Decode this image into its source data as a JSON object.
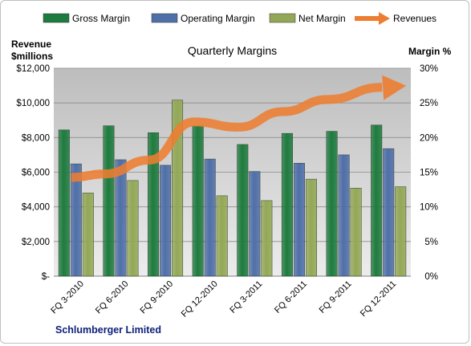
{
  "chart_data": {
    "type": "bar",
    "title": "Quarterly Margins",
    "company": "Schlumberger Limited",
    "left_axis_label": [
      "Revenue",
      "$millions"
    ],
    "right_axis_label": "Margin %",
    "left_ticks": [
      "$-",
      "$2,000",
      "$4,000",
      "$6,000",
      "$8,000",
      "$10,000",
      "$12,000"
    ],
    "right_ticks": [
      "0%",
      "5%",
      "10%",
      "15%",
      "20%",
      "25%",
      "30%"
    ],
    "ylim_left": [
      0,
      12000
    ],
    "ylim_right": [
      0,
      30
    ],
    "grid": true,
    "legend_position": "top",
    "categories": [
      "FQ 3-2010",
      "FQ 6-2010",
      "FQ 9-2010",
      "FQ 12-2010",
      "FQ 3-2011",
      "FQ 6-2011",
      "FQ 9-2011",
      "FQ 12-2011"
    ],
    "series": [
      {
        "name": "Gross Margin",
        "axis": "right",
        "color": "#1e7b3e",
        "values": [
          21.1,
          21.7,
          20.7,
          21.7,
          19.0,
          20.6,
          20.9,
          21.8
        ]
      },
      {
        "name": "Operating Margin",
        "axis": "right",
        "color": "#4f6fa8",
        "values": [
          16.2,
          16.8,
          16.0,
          16.9,
          15.1,
          16.3,
          17.5,
          18.4
        ]
      },
      {
        "name": "Net Margin",
        "axis": "right",
        "color": "#93a856",
        "values": [
          12.0,
          13.8,
          25.4,
          11.6,
          10.9,
          14.0,
          12.7,
          12.9
        ]
      },
      {
        "name": "Revenues",
        "axis": "left",
        "color": "#ed7d31",
        "type": "arrow",
        "values": [
          5700,
          5900,
          6700,
          8900,
          8600,
          9500,
          10200,
          10900
        ]
      }
    ]
  }
}
